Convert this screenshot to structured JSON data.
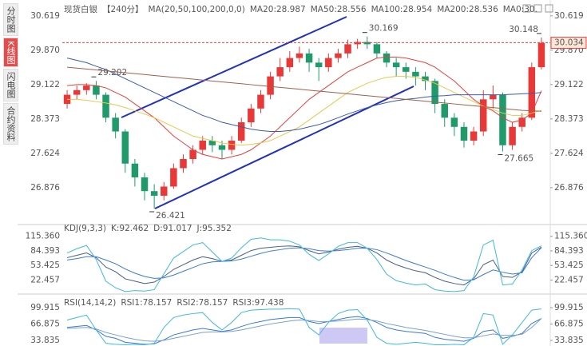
{
  "tabs": [
    "分时图",
    "K线图",
    "闪电图",
    "合约资料"
  ],
  "chart_data": [
    {
      "type": "candlestick",
      "title": "现货白银",
      "period": "【240分】",
      "indicator": "MA(20,50,100,200,0,0)",
      "up_color": "#e83838",
      "down_color": "#1f9a6a",
      "open": [
        28.7,
        28.9,
        29.0,
        29.1,
        28.9,
        28.4,
        28.1,
        27.4,
        27.1,
        26.8,
        26.7,
        26.9,
        27.3,
        27.5,
        27.7,
        27.9,
        27.8,
        27.7,
        27.9,
        28.3,
        28.6,
        28.9,
        29.3,
        29.5,
        29.7,
        29.8,
        29.6,
        29.5,
        29.7,
        29.8,
        30.0,
        30.05,
        30.0,
        29.8,
        29.6,
        29.5,
        29.4,
        29.3,
        29.2,
        28.7,
        28.4,
        28.2,
        27.9,
        28.1,
        28.8,
        28.9,
        27.8,
        28.2,
        28.4,
        29.5
      ],
      "high": [
        29.0,
        29.1,
        29.15,
        29.202,
        28.95,
        28.5,
        28.15,
        27.5,
        27.2,
        26.95,
        27.0,
        27.4,
        27.6,
        27.8,
        28.0,
        28.0,
        27.9,
        28.0,
        28.4,
        28.7,
        29.0,
        29.4,
        29.7,
        29.85,
        29.95,
        29.9,
        29.7,
        29.8,
        29.9,
        30.1,
        30.12,
        30.169,
        30.05,
        29.85,
        29.7,
        29.6,
        29.5,
        29.4,
        29.25,
        28.8,
        28.5,
        28.3,
        28.2,
        29.0,
        29.1,
        28.95,
        28.3,
        28.5,
        29.6,
        30.148
      ],
      "low": [
        28.6,
        28.8,
        28.9,
        28.8,
        28.3,
        27.95,
        27.2,
        26.9,
        26.6,
        26.421,
        26.6,
        26.85,
        27.2,
        27.4,
        27.6,
        27.65,
        27.5,
        27.6,
        27.85,
        28.2,
        28.5,
        28.8,
        29.2,
        29.4,
        29.6,
        29.4,
        29.2,
        29.4,
        29.6,
        29.7,
        29.9,
        29.9,
        29.7,
        29.5,
        29.3,
        29.25,
        29.1,
        29.0,
        28.5,
        28.2,
        28.0,
        27.75,
        27.8,
        28.0,
        28.6,
        27.665,
        27.7,
        28.1,
        28.35,
        29.45
      ],
      "close": [
        28.9,
        29.0,
        29.1,
        28.9,
        28.4,
        28.1,
        27.4,
        27.1,
        26.8,
        26.7,
        26.9,
        27.3,
        27.5,
        27.7,
        27.9,
        27.8,
        27.7,
        27.9,
        28.3,
        28.6,
        28.9,
        29.3,
        29.5,
        29.7,
        29.8,
        29.6,
        29.5,
        29.7,
        29.8,
        30.0,
        30.05,
        30.0,
        29.8,
        29.6,
        29.5,
        29.4,
        29.3,
        29.2,
        28.7,
        28.4,
        28.2,
        27.9,
        28.1,
        28.8,
        28.9,
        27.8,
        28.2,
        28.4,
        29.5,
        30.03
      ],
      "series": [
        {
          "name": "MA20:28.987",
          "color": "#e84040",
          "values": [
            29.1,
            29.12,
            29.12,
            29.1,
            29.05,
            28.95,
            28.85,
            28.7,
            28.55,
            28.4,
            28.2,
            28.0,
            27.85,
            27.7,
            27.6,
            27.55,
            27.5,
            27.55,
            27.6,
            27.7,
            27.85,
            28.0,
            28.2,
            28.4,
            28.6,
            28.8,
            28.95,
            29.1,
            29.25,
            29.4,
            29.5,
            29.6,
            29.7,
            29.72,
            29.72,
            29.7,
            29.65,
            29.6,
            29.5,
            29.35,
            29.2,
            29.0,
            28.8,
            28.65,
            28.55,
            28.4,
            28.3,
            28.35,
            28.5,
            28.99
          ]
        },
        {
          "name": "MA50:28.556",
          "color": "#e8c84a",
          "values": [
            28.8,
            28.8,
            28.78,
            28.75,
            28.72,
            28.68,
            28.62,
            28.55,
            28.48,
            28.4,
            28.3,
            28.2,
            28.1,
            28.0,
            27.95,
            27.9,
            27.85,
            27.82,
            27.8,
            27.82,
            27.85,
            27.9,
            28.0,
            28.1,
            28.2,
            28.35,
            28.5,
            28.65,
            28.8,
            28.95,
            29.05,
            29.15,
            29.22,
            29.28,
            29.3,
            29.3,
            29.28,
            29.22,
            29.15,
            29.05,
            28.95,
            28.85,
            28.75,
            28.65,
            28.58,
            28.5,
            28.45,
            28.45,
            28.5,
            28.56
          ]
        },
        {
          "name": "MA100:28.954",
          "color": "#3a5bb0",
          "values": [
            29.7,
            29.65,
            29.6,
            29.52,
            29.45,
            29.35,
            29.25,
            29.15,
            29.05,
            28.95,
            28.85,
            28.75,
            28.65,
            28.55,
            28.45,
            28.38,
            28.3,
            28.25,
            28.2,
            28.15,
            28.12,
            28.1,
            28.1,
            28.12,
            28.15,
            28.2,
            28.25,
            28.32,
            28.4,
            28.48,
            28.55,
            28.62,
            28.68,
            28.73,
            28.77,
            28.8,
            28.82,
            28.85,
            28.87,
            28.88,
            28.9,
            28.9,
            28.9,
            28.9,
            28.9,
            28.9,
            28.91,
            28.92,
            28.93,
            28.95
          ]
        },
        {
          "name": "MA200:28.536",
          "color": "#a0604a",
          "values": [
            29.5,
            29.48,
            29.46,
            29.44,
            29.42,
            29.4,
            29.38,
            29.36,
            29.34,
            29.32,
            29.3,
            29.28,
            29.26,
            29.24,
            29.22,
            29.2,
            29.18,
            29.16,
            29.14,
            29.12,
            29.1,
            29.08,
            29.06,
            29.04,
            29.02,
            29.0,
            28.98,
            28.96,
            28.94,
            28.92,
            28.9,
            28.88,
            28.86,
            28.84,
            28.82,
            28.8,
            28.78,
            28.76,
            28.74,
            28.72,
            28.7,
            28.68,
            28.66,
            28.64,
            28.62,
            28.6,
            28.58,
            28.56,
            28.55,
            28.54
          ]
        }
      ],
      "extra_legend": {
        "name": "MA0:30.",
        "color": "#5a8de0"
      },
      "last_price": 30.034,
      "annotations": [
        "29.202",
        "30.169",
        "30.148",
        "26.421",
        "27.665"
      ],
      "ylim": [
        26.09,
        30.79
      ],
      "yticks": [
        26.876,
        27.624,
        28.373,
        29.122,
        {
          "value": 29.87,
          "label": "29.870"
        },
        30.619
      ]
    },
    {
      "type": "line",
      "title": "KDJ(9,3,3)",
      "series": [
        {
          "name": "K:92.462",
          "color": "#4a5f80",
          "values": [
            70,
            75,
            80,
            70,
            50,
            40,
            25,
            20,
            15,
            18,
            30,
            45,
            55,
            65,
            72,
            68,
            62,
            65,
            75,
            85,
            90,
            92,
            94,
            95,
            93,
            85,
            78,
            82,
            88,
            92,
            94,
            90,
            80,
            65,
            55,
            48,
            42,
            38,
            28,
            20,
            15,
            12,
            25,
            55,
            65,
            30,
            28,
            40,
            80,
            92.462
          ]
        },
        {
          "name": "D:91.017",
          "color": "#3a7bd5",
          "values": [
            65,
            68,
            72,
            72,
            65,
            57,
            46,
            37,
            30,
            26,
            27,
            33,
            41,
            49,
            57,
            61,
            62,
            63,
            67,
            73,
            79,
            84,
            87,
            90,
            91,
            89,
            85,
            84,
            85,
            87,
            90,
            90,
            87,
            80,
            72,
            64,
            57,
            50,
            43,
            35,
            28,
            22,
            23,
            34,
            44,
            39,
            35,
            38,
            70,
            91.017
          ]
        },
        {
          "name": "J:95.352",
          "color": "#40b8e0",
          "values": [
            80,
            89,
            96,
            66,
            20,
            6,
            -2,
            0,
            -1,
            2,
            36,
            69,
            83,
            97,
            102,
            82,
            62,
            69,
            91,
            109,
            112,
            108,
            108,
            105,
            97,
            77,
            64,
            78,
            94,
            102,
            102,
            90,
            66,
            35,
            21,
            16,
            12,
            14,
            2,
            -1,
            -2,
            0,
            29,
            97,
            107,
            12,
            14,
            44,
            85,
            95.352
          ]
        }
      ],
      "ylim": [
        -4,
        137
      ],
      "yticks": [
        22.457,
        53.425,
        84.393,
        {
          "value": 115.36,
          "label": "115.360"
        }
      ]
    },
    {
      "type": "line",
      "title": "RSI(14,14,2)",
      "series": [
        {
          "name": "RSI1:78.157",
          "color": "#3a7bd5",
          "values": [
            60,
            62,
            64,
            55,
            42,
            38,
            30,
            28,
            26,
            27,
            35,
            45,
            50,
            55,
            58,
            55,
            52,
            55,
            62,
            68,
            72,
            76,
            78,
            80,
            80,
            72,
            68,
            72,
            76,
            80,
            82,
            78,
            70,
            60,
            55,
            52,
            50,
            48,
            40,
            36,
            34,
            32,
            38,
            52,
            55,
            38,
            42,
            48,
            68,
            78.157
          ]
        },
        {
          "name": "RSI2:78.157",
          "color": "#7aa0d0",
          "values": [
            58,
            59,
            60,
            57,
            50,
            45,
            40,
            36,
            33,
            32,
            34,
            38,
            42,
            46,
            50,
            51,
            51,
            52,
            55,
            59,
            63,
            67,
            70,
            73,
            75,
            74,
            72,
            72,
            73,
            75,
            77,
            76,
            73,
            68,
            64,
            60,
            57,
            54,
            50,
            46,
            42,
            39,
            39,
            43,
            47,
            44,
            44,
            46,
            60,
            78.157
          ]
        },
        {
          "name": "RSI3:97.438",
          "color": "#40b8e0",
          "values": [
            75,
            80,
            85,
            55,
            28,
            26,
            25,
            26,
            25,
            28,
            60,
            80,
            85,
            88,
            90,
            70,
            55,
            70,
            90,
            95,
            96,
            97,
            97,
            98,
            97,
            60,
            45,
            70,
            88,
            95,
            96,
            75,
            40,
            28,
            26,
            28,
            30,
            28,
            25,
            25,
            26,
            25,
            40,
            88,
            85,
            26,
            45,
            70,
            95,
            97.438
          ]
        }
      ],
      "ylim": [
        22.5,
        121
      ],
      "yticks": [
        33.835,
        66.875,
        99.915
      ]
    }
  ]
}
